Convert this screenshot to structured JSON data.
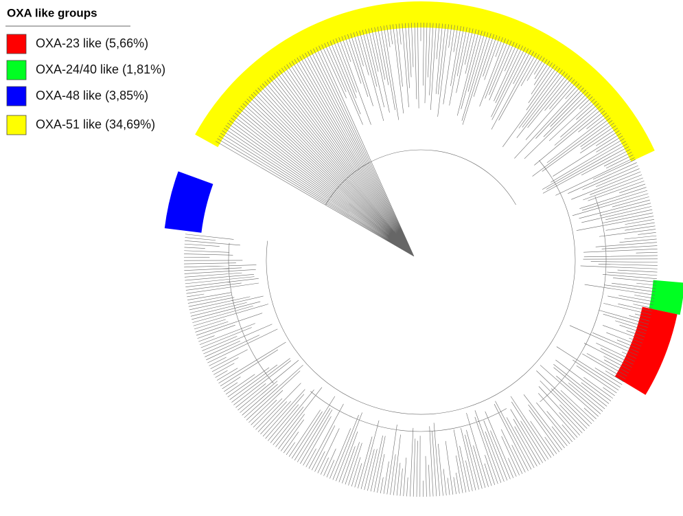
{
  "legend": {
    "title": "OXA like groups",
    "items": [
      {
        "label": "OXA-23 like",
        "share": "(5,66%)",
        "color": "#ff0000"
      },
      {
        "label": "OXA-24/40 like",
        "share": "(1,81%)",
        "color": "#00ff22"
      },
      {
        "label": "OXA-48 like",
        "share": "(3,85%)",
        "color": "#0000ff"
      },
      {
        "label": "OXA-51 like",
        "share": "(34,69%)",
        "color": "#ffff00"
      }
    ]
  }
}
